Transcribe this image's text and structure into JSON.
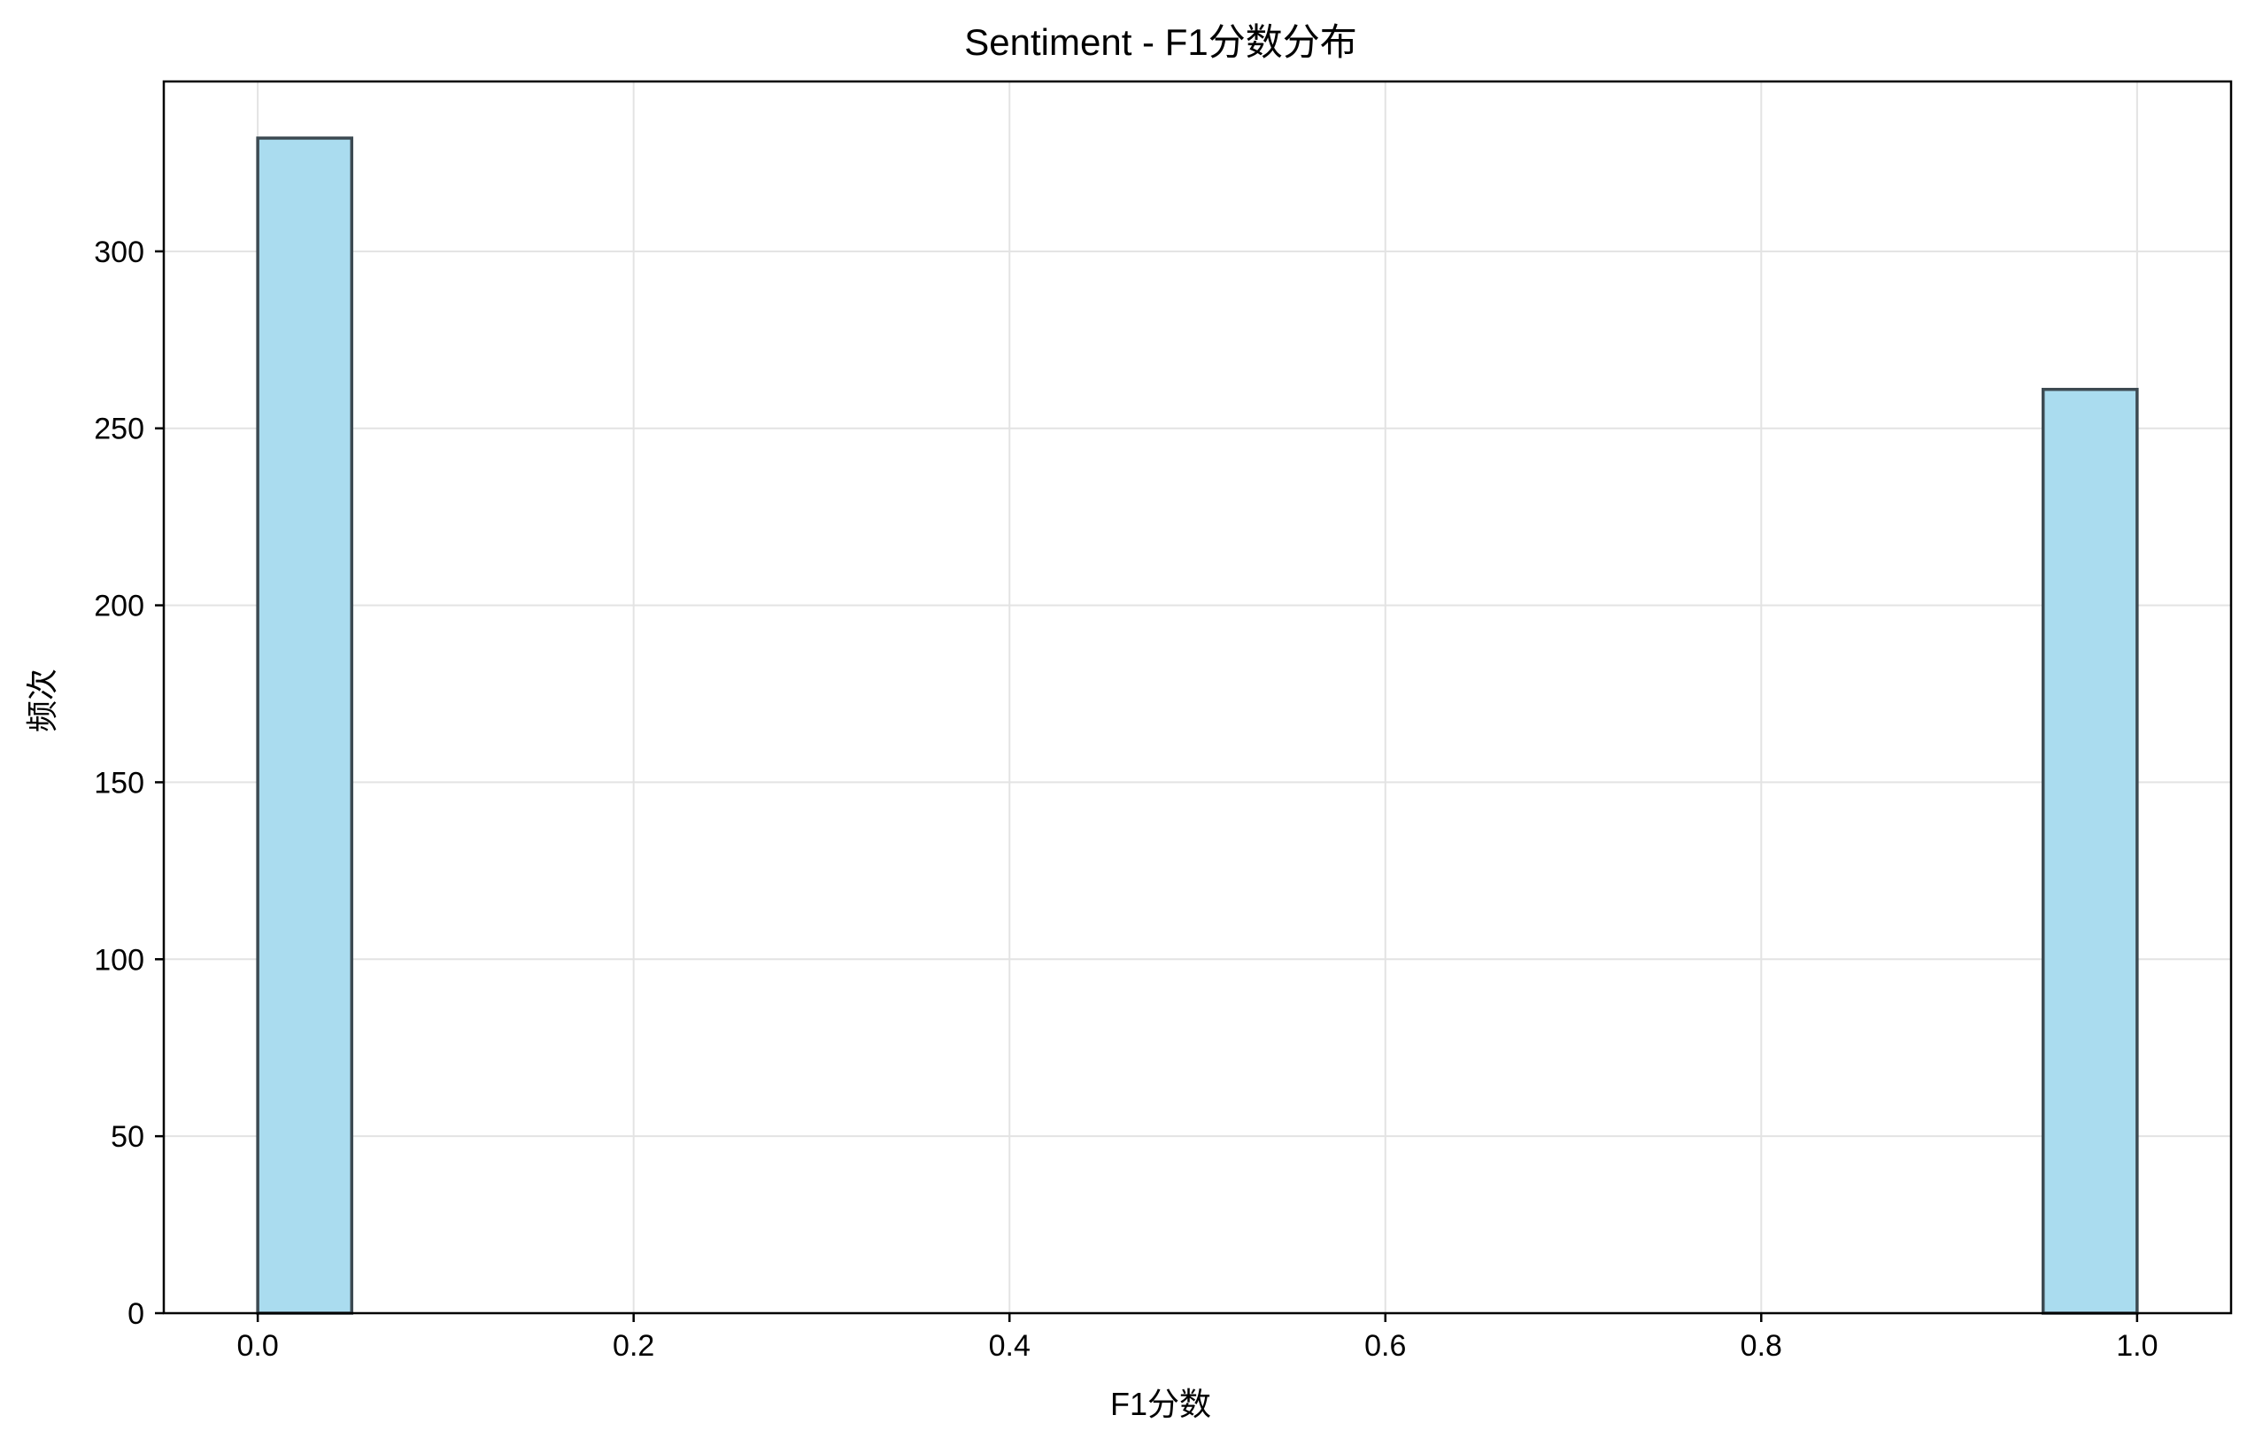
{
  "chart_data": {
    "type": "bar",
    "title": "Sentiment - F1分数分布",
    "xlabel": "F1分数",
    "ylabel": "频次",
    "xlim": [
      -0.05,
      1.05
    ],
    "ylim": [
      0,
      348
    ],
    "xticks": [
      "0.0",
      "0.2",
      "0.4",
      "0.6",
      "0.8",
      "1.0"
    ],
    "yticks": [
      "0",
      "50",
      "100",
      "150",
      "200",
      "250",
      "300"
    ],
    "grid": true,
    "bin_width": 0.05,
    "bars": [
      {
        "bin_start": 0.0,
        "bin_end": 0.05,
        "value": 332
      },
      {
        "bin_start": 0.95,
        "bin_end": 1.0,
        "value": 261
      }
    ],
    "colors": {
      "bar_fill": "#aadcef",
      "bar_edge": "#3d4a52",
      "grid": "#e3e3e3",
      "axis": "#000000"
    }
  }
}
